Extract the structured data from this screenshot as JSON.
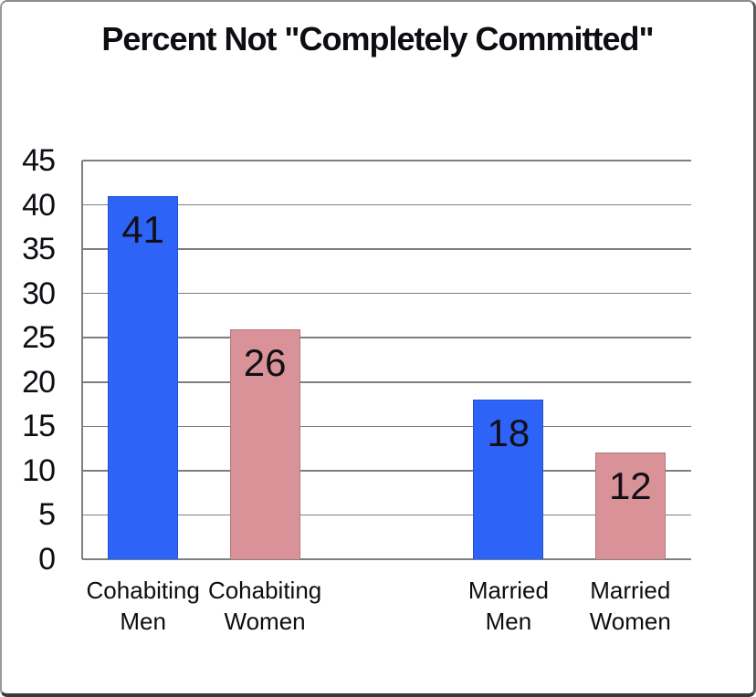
{
  "chart_data": {
    "type": "bar",
    "title": "Percent Not \"Completely Committed\"",
    "categories": [
      "Cohabiting Men",
      "Cohabiting Women",
      "Married Men",
      "Married Women"
    ],
    "values": [
      41,
      26,
      18,
      12
    ],
    "bars": [
      {
        "label": "Cohabiting Men",
        "value": 41,
        "color": "#2E63F7",
        "slot": 0
      },
      {
        "label": "Cohabiting Women",
        "value": 26,
        "color": "#D99398",
        "slot": 1
      },
      {
        "label": "Married Men",
        "value": 18,
        "color": "#2E63F7",
        "slot": 3
      },
      {
        "label": "Married Women",
        "value": 12,
        "color": "#D99398",
        "slot": 4
      }
    ],
    "slot_count": 5,
    "xlabel": "",
    "ylabel": "",
    "ylim": [
      0,
      45
    ],
    "yticks": [
      0,
      5,
      10,
      15,
      20,
      25,
      30,
      35,
      40,
      45
    ],
    "grid": true,
    "legend_position": "none",
    "data_labels": true
  },
  "colors": {
    "bar_blue": "#2E63F7",
    "bar_pink": "#D99398",
    "grid": "#7F7F7F",
    "axis": "#7F7F7F",
    "text": "#0D0D12",
    "background": "#FFFFFF",
    "frame_border": "#8C8C8C"
  }
}
